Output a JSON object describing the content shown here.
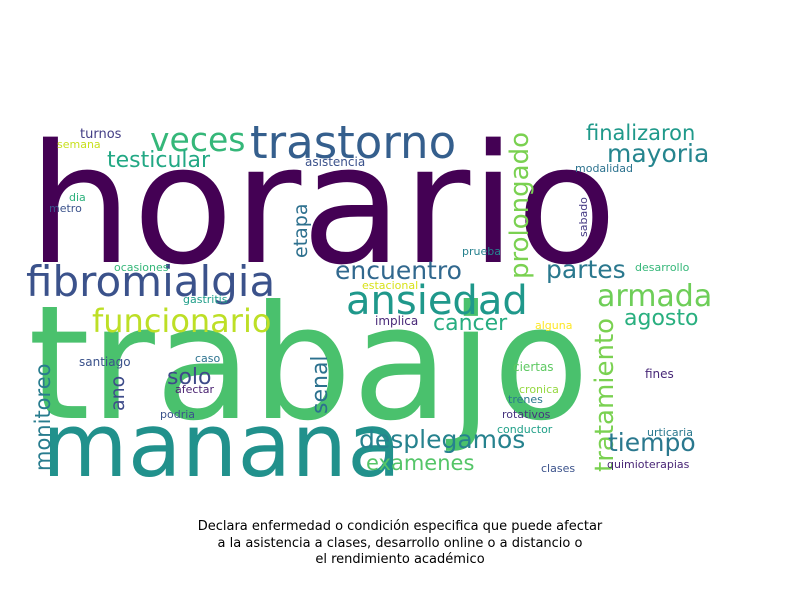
{
  "chart_data": {
    "type": "wordcloud",
    "colormap": "viridis",
    "words": [
      {
        "text": "horario",
        "color": "#440154"
      },
      {
        "text": "trabajo",
        "color": "#4ac16d"
      },
      {
        "text": "manana",
        "color": "#21918c"
      },
      {
        "text": "fibromialgia",
        "color": "#3b528b"
      },
      {
        "text": "trastorno",
        "color": "#355f8d"
      },
      {
        "text": "ansiedad",
        "color": "#1f988b"
      },
      {
        "text": "veces",
        "color": "#35b779"
      },
      {
        "text": "funcionario",
        "color": "#bddf26"
      },
      {
        "text": "armada",
        "color": "#6ece58"
      },
      {
        "text": "encuentro",
        "color": "#31688e"
      },
      {
        "text": "partes",
        "color": "#2a788e"
      },
      {
        "text": "prolongado",
        "color": "#7ad151"
      },
      {
        "text": "tratamiento",
        "color": "#7ad151"
      },
      {
        "text": "desplegamos",
        "color": "#26828e"
      },
      {
        "text": "tiempo",
        "color": "#2a788e"
      },
      {
        "text": "mayoria",
        "color": "#25858e"
      },
      {
        "text": "testicular",
        "color": "#22a884"
      },
      {
        "text": "finalizaron",
        "color": "#1f998a"
      },
      {
        "text": "cancer",
        "color": "#27ad81"
      },
      {
        "text": "agosto",
        "color": "#29af7f"
      },
      {
        "text": "examenes",
        "color": "#54c568"
      },
      {
        "text": "monitoreo",
        "color": "#287c8e"
      },
      {
        "text": "senal",
        "color": "#2c718e"
      },
      {
        "text": "solo",
        "color": "#3e4a89"
      },
      {
        "text": "etapa",
        "color": "#2d708e"
      },
      {
        "text": "ano",
        "color": "#3e4c8a"
      },
      {
        "text": "turnos",
        "color": "#433e85"
      },
      {
        "text": "semana",
        "color": "#c8e020"
      },
      {
        "text": "asistencia",
        "color": "#3b528b"
      },
      {
        "text": "modalidad",
        "color": "#2c728e"
      },
      {
        "text": "dia",
        "color": "#2db27d"
      },
      {
        "text": "metro",
        "color": "#3b528b"
      },
      {
        "text": "sabado",
        "color": "#443983"
      },
      {
        "text": "prueba",
        "color": "#26818e"
      },
      {
        "text": "ocasiones",
        "color": "#35b779"
      },
      {
        "text": "desarrollo",
        "color": "#35b779"
      },
      {
        "text": "estacional",
        "color": "#d8e219"
      },
      {
        "text": "gastritis",
        "color": "#1f9e89"
      },
      {
        "text": "implica",
        "color": "#482878"
      },
      {
        "text": "alguna",
        "color": "#fde725"
      },
      {
        "text": "caso",
        "color": "#2c728e"
      },
      {
        "text": "santiago",
        "color": "#3b528b"
      },
      {
        "text": "afectar",
        "color": "#481f70"
      },
      {
        "text": "ciertas",
        "color": "#5ec962"
      },
      {
        "text": "cronica",
        "color": "#95d840"
      },
      {
        "text": "trenes",
        "color": "#2a788e"
      },
      {
        "text": "fines",
        "color": "#482878"
      },
      {
        "text": "podria",
        "color": "#3b528b"
      },
      {
        "text": "rotativos",
        "color": "#46337e"
      },
      {
        "text": "conductor",
        "color": "#1fa088"
      },
      {
        "text": "urticaria",
        "color": "#2a788e"
      },
      {
        "text": "clases",
        "color": "#3b528b"
      },
      {
        "text": "quimioterapias",
        "color": "#482475"
      }
    ]
  },
  "caption": {
    "line1": "Declara enfermedad o condición especifica que puede afectar",
    "line2": "a la asistencia a clases, desarrollo online o a distancio o",
    "line3": "el rendimiento académico"
  }
}
